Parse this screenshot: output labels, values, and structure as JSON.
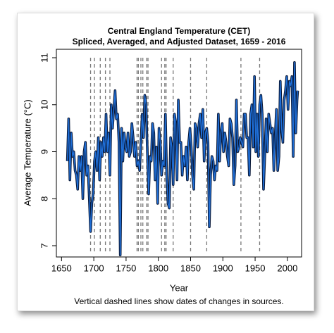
{
  "chart_data": {
    "type": "line",
    "title": "Central England Temperature (CET)",
    "subtitle": "Spliced, Averaged, and Adjusted Dataset, 1659 - 2016",
    "xlabel": "Year",
    "ylabel": "Average Temperature (°C)",
    "note": "Vertical dashed lines show dates of changes in sources.",
    "xlim": [
      1642,
      2022
    ],
    "ylim": [
      6.76,
      11.18
    ],
    "xticks": [
      1650,
      1700,
      1750,
      1800,
      1850,
      1900,
      1950,
      2000
    ],
    "yticks": [
      7,
      8,
      9,
      10,
      11
    ],
    "vlines": [
      1695,
      1701,
      1710,
      1718,
      1725,
      1767,
      1769,
      1773,
      1776,
      1782,
      1784,
      1805,
      1810,
      1812,
      1823,
      1850,
      1875,
      1928,
      1957
    ],
    "series": [
      {
        "name": "CET",
        "color": "#1f6fd8",
        "x": [
          1659,
          1661,
          1663,
          1665,
          1667,
          1669,
          1671,
          1673,
          1675,
          1677,
          1679,
          1681,
          1683,
          1685,
          1687,
          1689,
          1691,
          1693,
          1695,
          1697,
          1699,
          1701,
          1703,
          1705,
          1707,
          1709,
          1711,
          1713,
          1715,
          1717,
          1719,
          1721,
          1723,
          1725,
          1727,
          1729,
          1731,
          1733,
          1735,
          1737,
          1739,
          1741,
          1743,
          1745,
          1747,
          1749,
          1751,
          1753,
          1755,
          1757,
          1759,
          1761,
          1763,
          1765,
          1767,
          1769,
          1771,
          1773,
          1775,
          1777,
          1779,
          1781,
          1783,
          1785,
          1787,
          1789,
          1791,
          1793,
          1795,
          1797,
          1799,
          1801,
          1803,
          1805,
          1807,
          1809,
          1811,
          1813,
          1815,
          1817,
          1819,
          1821,
          1823,
          1825,
          1827,
          1829,
          1831,
          1833,
          1835,
          1837,
          1839,
          1841,
          1843,
          1845,
          1847,
          1849,
          1851,
          1853,
          1855,
          1857,
          1859,
          1861,
          1863,
          1865,
          1867,
          1869,
          1871,
          1873,
          1875,
          1877,
          1879,
          1881,
          1883,
          1885,
          1887,
          1889,
          1891,
          1893,
          1895,
          1897,
          1899,
          1901,
          1903,
          1905,
          1907,
          1909,
          1911,
          1913,
          1915,
          1917,
          1919,
          1921,
          1923,
          1925,
          1927,
          1929,
          1931,
          1933,
          1935,
          1937,
          1939,
          1941,
          1943,
          1945,
          1947,
          1949,
          1951,
          1953,
          1955,
          1957,
          1959,
          1961,
          1963,
          1965,
          1967,
          1969,
          1971,
          1973,
          1975,
          1977,
          1979,
          1981,
          1983,
          1985,
          1987,
          1989,
          1991,
          1993,
          1995,
          1997,
          1999,
          2001,
          2003,
          2005,
          2007,
          2009,
          2011,
          2013,
          2015,
          2016
        ],
        "values": [
          8.8,
          9.7,
          8.4,
          9.4,
          8.9,
          9.0,
          8.6,
          8.5,
          8.2,
          8.9,
          8.6,
          8.9,
          8.0,
          9.0,
          9.2,
          8.5,
          8.7,
          8.0,
          7.3,
          7.9,
          8.1,
          8.8,
          9.0,
          8.6,
          9.3,
          8.4,
          9.2,
          8.9,
          9.3,
          9.0,
          9.8,
          9.0,
          9.4,
          8.5,
          10.0,
          9.5,
          9.9,
          10.3,
          9.7,
          9.8,
          9.2,
          6.8,
          9.5,
          8.8,
          9.4,
          9.1,
          9.0,
          9.4,
          8.9,
          9.0,
          9.6,
          9.3,
          8.9,
          9.2,
          8.7,
          8.8,
          8.6,
          9.2,
          9.8,
          9.3,
          10.2,
          10.0,
          9.0,
          8.1,
          8.9,
          8.8,
          9.6,
          9.4,
          8.4,
          9.1,
          7.9,
          9.5,
          9.2,
          8.5,
          8.8,
          8.7,
          9.8,
          8.5,
          7.9,
          7.8,
          9.3,
          9.1,
          8.3,
          9.8,
          9.6,
          8.4,
          10.1,
          9.2,
          9.2,
          8.5,
          8.9,
          8.7,
          9.1,
          8.4,
          9.2,
          9.5,
          9.1,
          8.5,
          8.2,
          9.6,
          9.5,
          9.1,
          9.6,
          9.8,
          9.3,
          9.9,
          8.8,
          9.4,
          9.5,
          9.2,
          7.4,
          8.5,
          8.9,
          8.8,
          8.4,
          8.7,
          8.6,
          9.8,
          8.8,
          9.4,
          9.6,
          9.0,
          9.4,
          9.2,
          8.9,
          8.7,
          9.7,
          9.6,
          9.3,
          8.3,
          8.7,
          10.1,
          9.0,
          9.1,
          9.3,
          9.2,
          9.1,
          9.8,
          9.8,
          9.3,
          9.3,
          8.5,
          9.8,
          10.0,
          9.1,
          10.6,
          9.0,
          9.8,
          8.9,
          10.0,
          10.2,
          9.8,
          8.2,
          8.9,
          9.7,
          9.0,
          9.8,
          9.6,
          9.4,
          9.5,
          8.6,
          9.3,
          9.9,
          8.6,
          8.9,
          10.5,
          9.5,
          9.2,
          10.1,
          10.3,
          10.6,
          9.9,
          10.5,
          10.4,
          10.6,
          8.9,
          10.9,
          9.4,
          10.1,
          10.3
        ]
      }
    ]
  }
}
